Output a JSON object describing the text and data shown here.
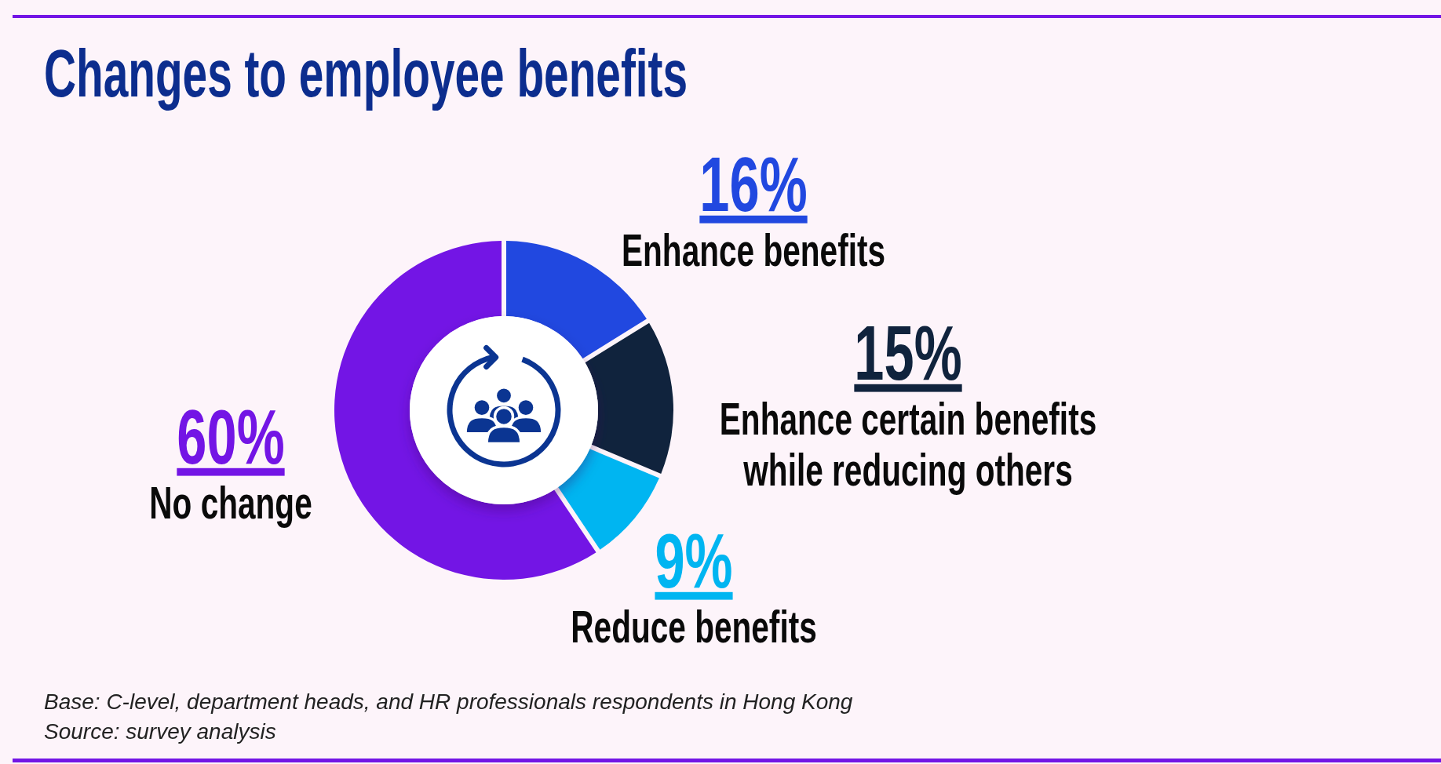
{
  "chart_data": {
    "type": "donut",
    "title": "Changes to employee benefits",
    "categories": [
      "Enhance benefits",
      "Enhance certain benefits while reducing others",
      "Reduce benefits",
      "No change"
    ],
    "values": [
      16,
      15,
      9,
      60
    ],
    "colors": [
      "#2148e0",
      "#10233d",
      "#00b5f1",
      "#7315e5"
    ],
    "value_labels": [
      "16%",
      "15%",
      "9%",
      "60%"
    ],
    "annotations": [
      "Base: C-level, department heads, and HR professionals respondents in Hong Kong",
      "Source: survey analysis"
    ]
  }
}
